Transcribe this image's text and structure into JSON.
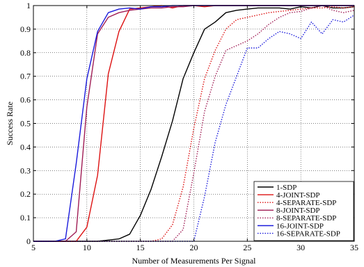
{
  "chart_data": {
    "type": "line",
    "title": "",
    "xlabel": "Number of Measurements Per Signal",
    "ylabel": "Success Rate",
    "xlim": [
      5,
      35
    ],
    "ylim": [
      0,
      1
    ],
    "xticks": [
      5,
      10,
      15,
      20,
      25,
      30,
      35
    ],
    "yticks": [
      0,
      0.1,
      0.2,
      0.3,
      0.4,
      0.5,
      0.6,
      0.7,
      0.8,
      0.9,
      1
    ],
    "grid": true,
    "legend_position": "bottom-right",
    "series": [
      {
        "name": "1-SDP",
        "color": "#000000",
        "dash": "solid",
        "x": [
          5,
          6,
          7,
          8,
          9,
          10,
          11,
          12,
          13,
          14,
          15,
          16,
          17,
          18,
          19,
          20,
          21,
          22,
          23,
          24,
          25,
          26,
          27,
          28,
          29,
          30,
          31,
          32,
          33,
          34,
          35
        ],
        "y": [
          0,
          0,
          0,
          0,
          0,
          0,
          0,
          0.005,
          0.01,
          0.03,
          0.11,
          0.22,
          0.36,
          0.51,
          0.69,
          0.8,
          0.9,
          0.93,
          0.97,
          0.98,
          0.985,
          0.99,
          0.99,
          0.99,
          0.985,
          0.995,
          0.99,
          1,
          0.99,
          0.99,
          0.995
        ]
      },
      {
        "name": "4-JOINT-SDP",
        "color": "#dd1111",
        "dash": "solid",
        "x": [
          5,
          6,
          7,
          8,
          9,
          10,
          11,
          12,
          13,
          14,
          15,
          16,
          17,
          18,
          19,
          20,
          21,
          22,
          23,
          24,
          25,
          26,
          27,
          28,
          29,
          30,
          31,
          32,
          33,
          34,
          35
        ],
        "y": [
          0,
          0,
          0,
          0,
          0,
          0.06,
          0.28,
          0.71,
          0.89,
          0.985,
          0.99,
          0.995,
          1,
          0.99,
          1,
          1,
          0.995,
          1,
          1,
          1,
          1,
          1,
          1,
          1,
          1,
          1,
          1,
          1,
          1,
          1,
          1
        ]
      },
      {
        "name": "4-SEPARATE-SDP",
        "color": "#dd1111",
        "dash": "dotted",
        "x": [
          5,
          6,
          7,
          8,
          9,
          10,
          11,
          12,
          13,
          14,
          15,
          16,
          17,
          18,
          19,
          20,
          21,
          22,
          23,
          24,
          25,
          26,
          27,
          28,
          29,
          30,
          31,
          32,
          33,
          34,
          35
        ],
        "y": [
          0,
          0,
          0,
          0,
          0,
          0,
          0,
          0,
          0,
          0,
          0,
          0,
          0.01,
          0.07,
          0.23,
          0.48,
          0.69,
          0.81,
          0.9,
          0.94,
          0.95,
          0.96,
          0.97,
          0.975,
          0.98,
          0.985,
          0.99,
          0.99,
          0.995,
          0.99,
          0.995
        ]
      },
      {
        "name": "8-JOINT-SDP",
        "color": "#a01d55",
        "dash": "solid",
        "x": [
          5,
          6,
          7,
          8,
          9,
          10,
          11,
          12,
          13,
          14,
          15,
          16,
          17,
          18,
          19,
          20,
          21,
          22,
          23,
          24,
          25,
          26,
          27,
          28,
          29,
          30,
          31,
          32,
          33,
          34,
          35
        ],
        "y": [
          0,
          0,
          0,
          0,
          0.04,
          0.57,
          0.88,
          0.95,
          0.97,
          0.98,
          0.985,
          0.99,
          0.99,
          0.995,
          0.995,
          1,
          1,
          1,
          1,
          1,
          1,
          1,
          1,
          1,
          1,
          1,
          1,
          1,
          1,
          1,
          1
        ]
      },
      {
        "name": "8-SEPARATE-SDP",
        "color": "#a01d55",
        "dash": "dotted",
        "x": [
          5,
          6,
          7,
          8,
          9,
          10,
          11,
          12,
          13,
          14,
          15,
          16,
          17,
          18,
          19,
          20,
          21,
          22,
          23,
          24,
          25,
          26,
          27,
          28,
          29,
          30,
          31,
          32,
          33,
          34,
          35
        ],
        "y": [
          0,
          0,
          0,
          0,
          0,
          0,
          0,
          0,
          0,
          0,
          0,
          0,
          0,
          0,
          0.05,
          0.29,
          0.55,
          0.7,
          0.81,
          0.83,
          0.85,
          0.88,
          0.92,
          0.95,
          0.97,
          0.975,
          0.99,
          1,
          0.98,
          0.97,
          0.98
        ]
      },
      {
        "name": "16-JOINT-SDP",
        "color": "#1a1adc",
        "dash": "solid",
        "x": [
          5,
          6,
          7,
          8,
          9,
          10,
          11,
          12,
          13,
          14,
          15,
          16,
          17,
          18,
          19,
          20,
          21,
          22,
          23,
          24,
          25,
          26,
          27,
          28,
          29,
          30,
          31,
          32,
          33,
          34,
          35
        ],
        "y": [
          0,
          0,
          0,
          0.01,
          0.33,
          0.69,
          0.89,
          0.97,
          0.985,
          0.99,
          0.985,
          0.995,
          0.995,
          1,
          1,
          1,
          1,
          1,
          1,
          1,
          1,
          1,
          1,
          1,
          1,
          1,
          1,
          1,
          1,
          1,
          1
        ]
      },
      {
        "name": "16-SEPARATE-SDP",
        "color": "#1a1adc",
        "dash": "dotted",
        "x": [
          5,
          6,
          7,
          8,
          9,
          10,
          11,
          12,
          13,
          14,
          15,
          16,
          17,
          18,
          19,
          20,
          21,
          22,
          23,
          24,
          25,
          26,
          27,
          28,
          29,
          30,
          31,
          32,
          33,
          34,
          35
        ],
        "y": [
          0,
          0,
          0,
          0,
          0,
          0,
          0,
          0,
          0,
          0,
          0,
          0,
          0,
          0,
          0,
          0,
          0.19,
          0.42,
          0.58,
          0.7,
          0.82,
          0.82,
          0.86,
          0.89,
          0.88,
          0.86,
          0.93,
          0.88,
          0.94,
          0.93,
          0.96
        ]
      }
    ]
  }
}
